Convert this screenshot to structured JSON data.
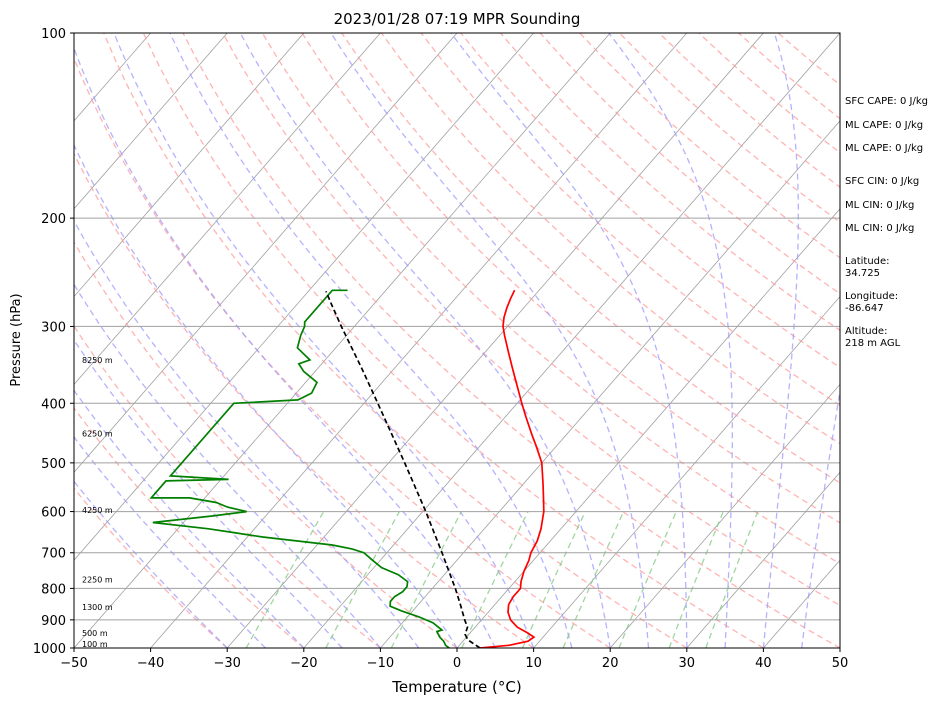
{
  "chart_data": {
    "type": "line",
    "title": "2023/01/28 07:19 MPR Sounding",
    "xlabel": "Temperature (°C)",
    "ylabel": "Pressure (hPa)",
    "xlim": [
      -50,
      50
    ],
    "ylim": [
      1000,
      100
    ],
    "y_scale": "log",
    "grid": "on",
    "x_ticks": [
      -50,
      -40,
      -30,
      -20,
      -10,
      0,
      10,
      20,
      30,
      40,
      50
    ],
    "y_ticks": [
      1000,
      900,
      800,
      700,
      600,
      500,
      400,
      300,
      200,
      100
    ],
    "series": [
      {
        "role": "temperature",
        "color": "#ff0000",
        "points": [
          [
            1000,
            3.0
          ],
          [
            990,
            6.5
          ],
          [
            975,
            8.5
          ],
          [
            960,
            8.8
          ],
          [
            945,
            7.5
          ],
          [
            925,
            5.5
          ],
          [
            900,
            3.8
          ],
          [
            875,
            2.6
          ],
          [
            850,
            1.8
          ],
          [
            825,
            1.5
          ],
          [
            800,
            1.5
          ],
          [
            780,
            0.8
          ],
          [
            750,
            0.0
          ],
          [
            720,
            -0.6
          ],
          [
            700,
            -1.2
          ],
          [
            670,
            -1.7
          ],
          [
            640,
            -2.6
          ],
          [
            600,
            -4.2
          ],
          [
            570,
            -5.8
          ],
          [
            540,
            -7.5
          ],
          [
            500,
            -10.0
          ],
          [
            470,
            -12.6
          ],
          [
            450,
            -14.5
          ],
          [
            420,
            -17.4
          ],
          [
            400,
            -19.4
          ],
          [
            370,
            -22.5
          ],
          [
            350,
            -24.7
          ],
          [
            330,
            -27.0
          ],
          [
            310,
            -29.4
          ],
          [
            300,
            -30.6
          ],
          [
            290,
            -31.5
          ],
          [
            280,
            -32.2
          ],
          [
            270,
            -32.8
          ],
          [
            262,
            -33.2
          ]
        ]
      },
      {
        "role": "dewpoint",
        "color": "#008000",
        "points": [
          [
            1000,
            -1.0
          ],
          [
            990,
            -1.8
          ],
          [
            975,
            -2.5
          ],
          [
            960,
            -3.5
          ],
          [
            940,
            -4.5
          ],
          [
            935,
            -4.0
          ],
          [
            925,
            -4.8
          ],
          [
            910,
            -6.0
          ],
          [
            890,
            -8.5
          ],
          [
            870,
            -11.5
          ],
          [
            855,
            -13.5
          ],
          [
            840,
            -14.0
          ],
          [
            825,
            -14.0
          ],
          [
            810,
            -13.5
          ],
          [
            795,
            -13.5
          ],
          [
            780,
            -14.0
          ],
          [
            760,
            -16.0
          ],
          [
            740,
            -19.0
          ],
          [
            720,
            -21.0
          ],
          [
            700,
            -23.0
          ],
          [
            690,
            -25.0
          ],
          [
            680,
            -28.0
          ],
          [
            670,
            -33.0
          ],
          [
            660,
            -38.0
          ],
          [
            650,
            -42.0
          ],
          [
            640,
            -46.0
          ],
          [
            625,
            -54.0
          ],
          [
            610,
            -47.0
          ],
          [
            600,
            -43.0
          ],
          [
            590,
            -46.0
          ],
          [
            580,
            -48.0
          ],
          [
            570,
            -52.0
          ],
          [
            570,
            -57.0
          ],
          [
            560,
            -57.0
          ],
          [
            535,
            -57.0
          ],
          [
            532,
            -49.0
          ],
          [
            525,
            -57.0
          ],
          [
            520,
            -57.0
          ],
          [
            400,
            -57.0
          ],
          [
            395,
            -49.0
          ],
          [
            385,
            -48.0
          ],
          [
            370,
            -48.5
          ],
          [
            355,
            -51.5
          ],
          [
            345,
            -53.0
          ],
          [
            340,
            -52.0
          ],
          [
            335,
            -53.0
          ],
          [
            325,
            -55.0
          ],
          [
            310,
            -56.0
          ],
          [
            300,
            -56.5
          ],
          [
            295,
            -57.0
          ],
          [
            262,
            -57.0
          ],
          [
            262,
            -55.0
          ]
        ]
      },
      {
        "role": "parcel",
        "color": "#000000",
        "style": "dashed",
        "points": [
          [
            1000,
            3.0
          ],
          [
            970,
            0.5
          ],
          [
            950,
            -0.5
          ],
          [
            925,
            -1.0
          ],
          [
            900,
            -2.2
          ],
          [
            850,
            -4.5
          ],
          [
            800,
            -7.0
          ],
          [
            700,
            -12.8
          ],
          [
            600,
            -19.6
          ],
          [
            500,
            -27.9
          ],
          [
            400,
            -38.2
          ],
          [
            350,
            -44.4
          ],
          [
            300,
            -51.7
          ],
          [
            275,
            -55.7
          ],
          [
            263,
            -57.7
          ]
        ]
      }
    ],
    "height_labels": [
      {
        "pressure": 1000,
        "text": "100 m"
      },
      {
        "pressure": 960,
        "text": "500 m"
      },
      {
        "pressure": 870,
        "text": "1300 m"
      },
      {
        "pressure": 785,
        "text": "2250 m"
      },
      {
        "pressure": 605,
        "text": "4250 m"
      },
      {
        "pressure": 455,
        "text": "6250 m"
      },
      {
        "pressure": 345,
        "text": "8250 m"
      }
    ],
    "annotations": [
      "SFC CAPE: 0 J/kg",
      "ML CAPE: 0 J/kg",
      "ML CAPE: 0 J/kg",
      "SFC CIN: 0 J/kg",
      "ML CIN: 0 J/kg",
      "ML CIN: 0 J/kg",
      "Latitude:",
      "34.725",
      "Longitude:",
      "-86.647",
      "Altitude:",
      "218 m AGL"
    ],
    "reference_lines": {
      "isotherm_color": "#a0a0a0",
      "dry_adiabat_color": "#ff9999",
      "moist_adiabat_color": "#9999ff",
      "mixing_ratio_color": "#88cc88"
    }
  }
}
